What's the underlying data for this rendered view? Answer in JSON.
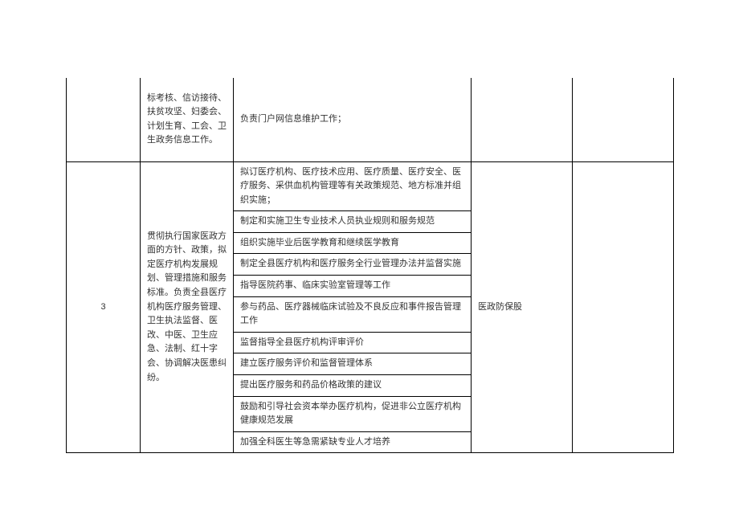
{
  "table": {
    "row1": {
      "summary": "标考核、信访接待、扶贫攻坚、妇委会、计划生育、工会、卫生政务信息工作。",
      "detail": "负责门户网信息维护工作；"
    },
    "row2": {
      "num": "3",
      "summary": "贯彻执行国家医政方面的方针、政策，拟定医疗机构发展规划、管理措施和服务标准。负责全县医疗机构医疗服务管理、卫生执法监督、医改、中医、卫生应急、法制、红十字会、协调解决医患纠纷。",
      "dept": "医政防保股",
      "details": [
        "拟订医疗机构、医疗技术应用、医疗质量、医疗安全、医疗服务、采供血机构管理等有关政策规范、地方标准并组织实施；",
        "制定和实施卫生专业技术人员执业规则和服务规范",
        "组织实施毕业后医学教育和继续医学教育",
        "制定全县医疗机构和医疗服务全行业管理办法并监督实施",
        "指导医院药事、临床实验室管理等工作",
        "参与药品、医疗器械临床试验及不良反应和事件报告管理工作",
        "监督指导全县医疗机构评审评价",
        "建立医疗服务评价和监督管理体系",
        "提出医疗服务和药品价格政策的建议",
        "鼓励和引导社会资本举办医疗机构，促进非公立医疗机构健康规范发展",
        "加强全科医生等急需紧缺专业人才培养"
      ]
    }
  }
}
